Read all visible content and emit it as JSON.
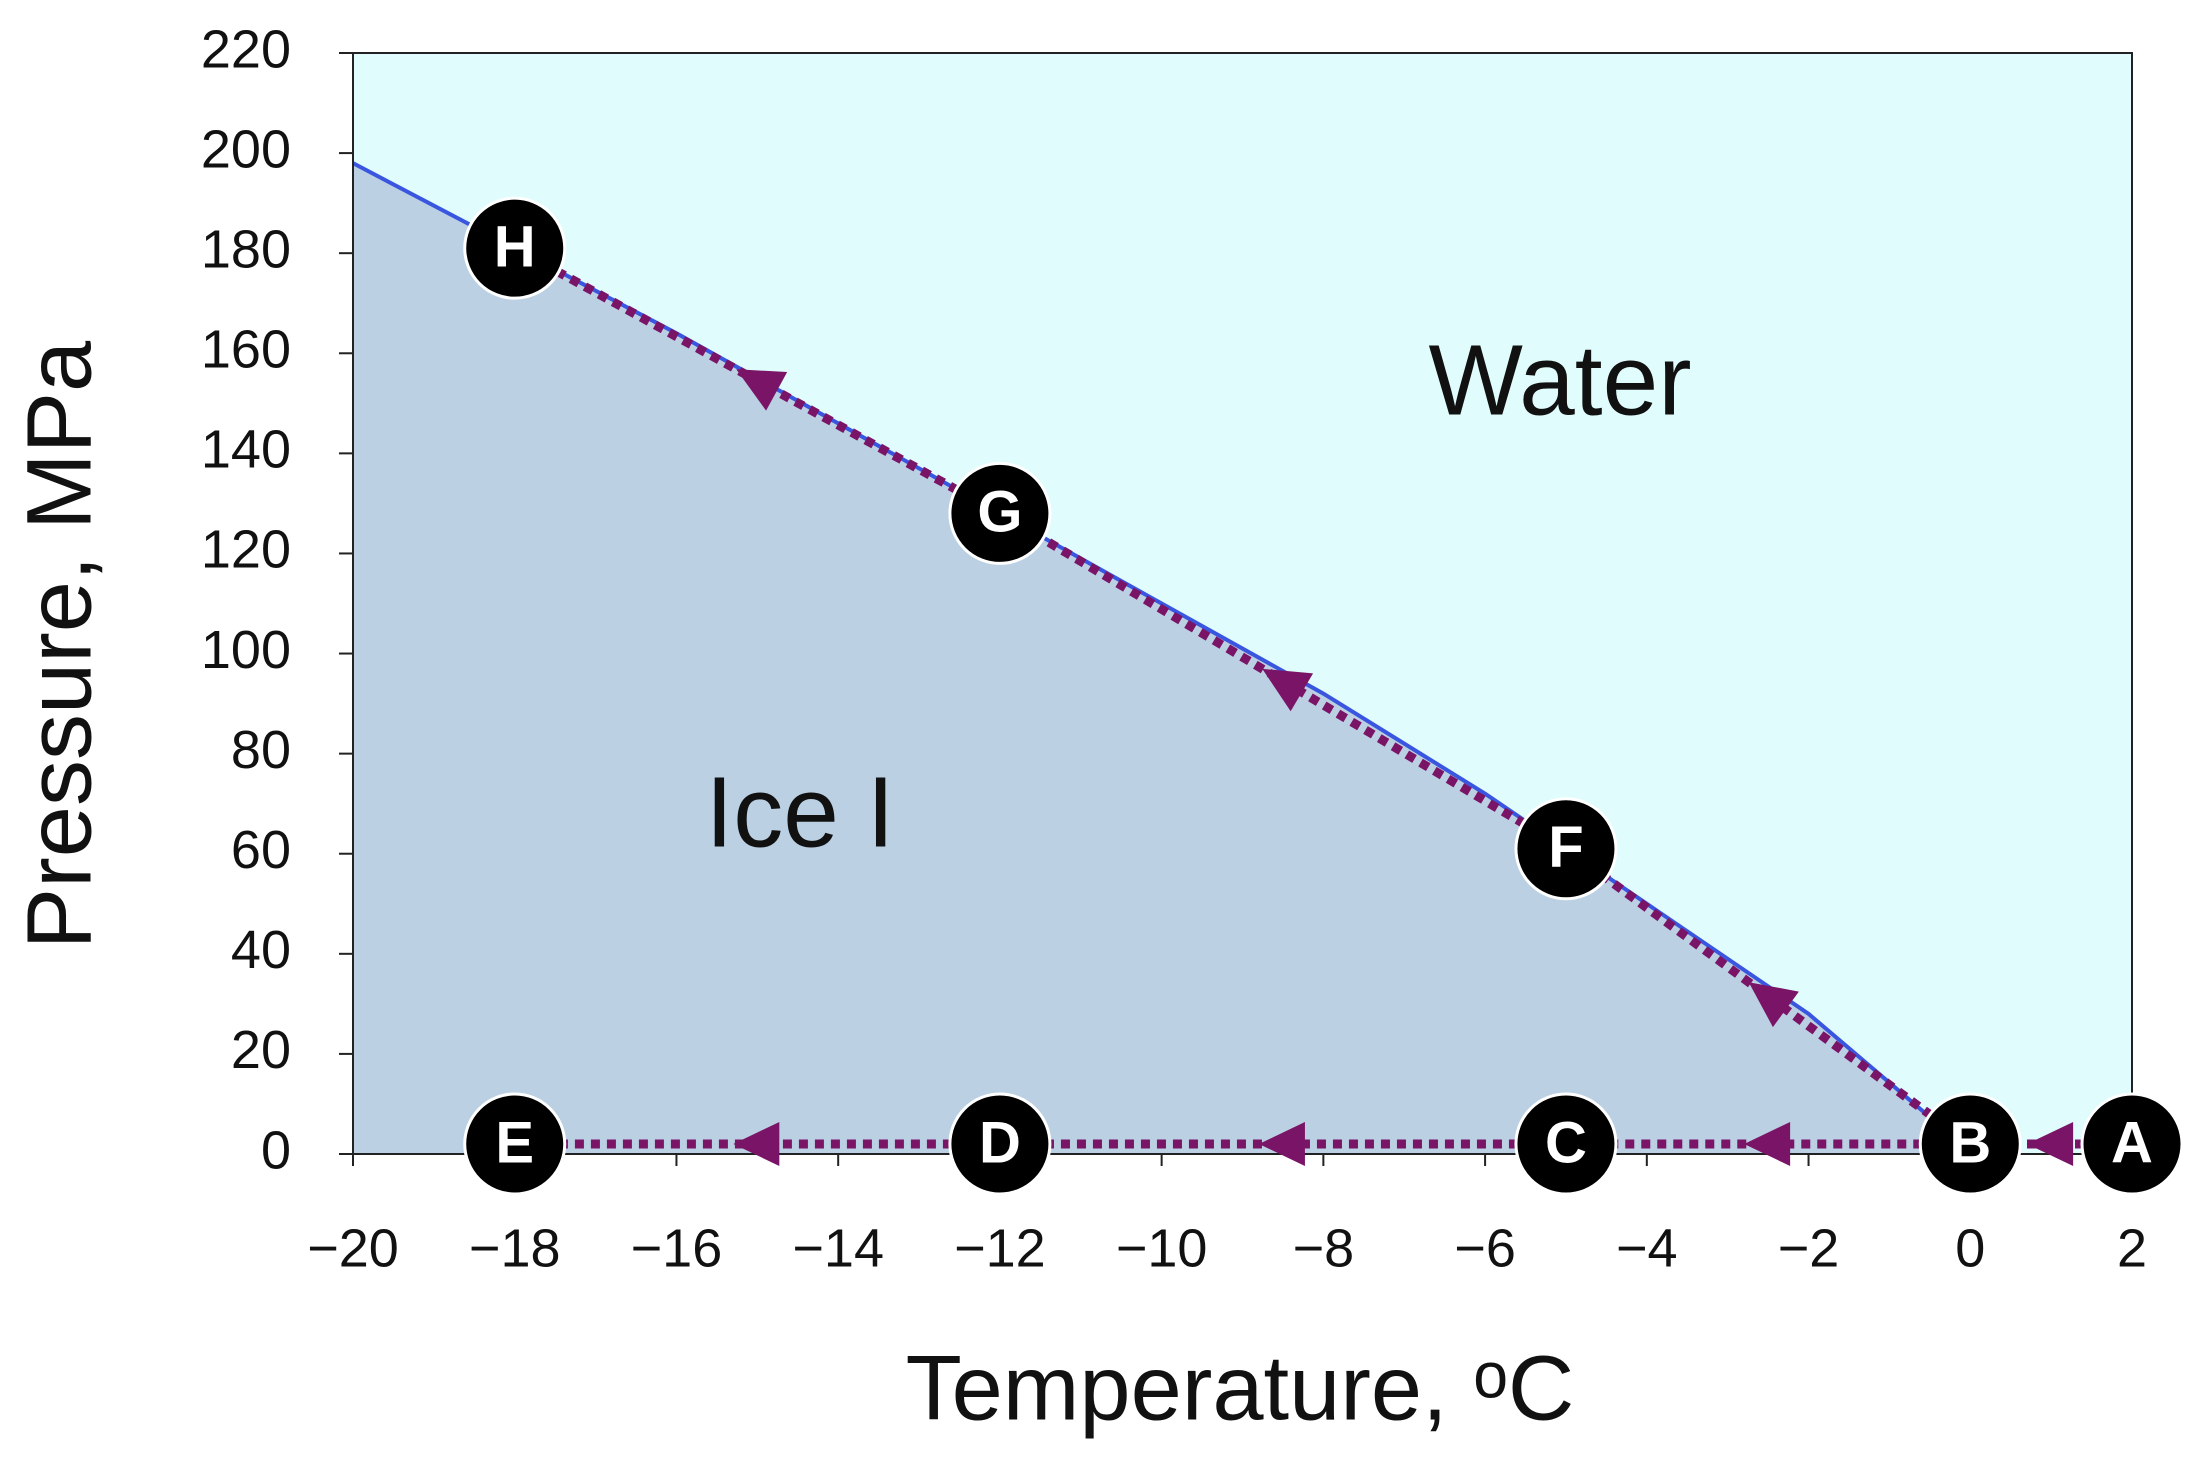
{
  "chart_data": {
    "type": "line",
    "x_label": "Temperature, ᵒC",
    "y_label": "Pressure, MPa",
    "annotations": [
      "Water",
      "Ice I"
    ],
    "xlim": [
      -20,
      2
    ],
    "ylim": [
      0,
      220
    ],
    "xticks": [
      {
        "value": -20,
        "label": "−20"
      },
      {
        "value": -18,
        "label": "−18"
      },
      {
        "value": -16,
        "label": "−16"
      },
      {
        "value": -14,
        "label": "−14"
      },
      {
        "value": -12,
        "label": "−12"
      },
      {
        "value": -10,
        "label": "−10"
      },
      {
        "value": -8,
        "label": "−8"
      },
      {
        "value": -6,
        "label": "−6"
      },
      {
        "value": -4,
        "label": "−4"
      },
      {
        "value": -2,
        "label": "−2"
      },
      0,
      2
    ],
    "yticks": [
      0,
      20,
      40,
      60,
      80,
      100,
      120,
      140,
      160,
      180,
      200,
      220
    ],
    "series": [
      {
        "color": "#3a55e0",
        "x": [
          -20,
          -18,
          -16,
          -14,
          -12,
          -10,
          -8,
          -6,
          -4,
          -2,
          -0.4
        ],
        "values": [
          198,
          181,
          164,
          146,
          128,
          110,
          92,
          72,
          50,
          28,
          6
        ]
      }
    ],
    "water_color": "#e0fcfc",
    "ice_color": "#bcd0e3",
    "points": [
      {
        "label": "A",
        "x": 2,
        "y": 2
      },
      {
        "label": "B",
        "x": 0,
        "y": 2
      },
      {
        "label": "C",
        "x": -5,
        "y": 2
      },
      {
        "label": "D",
        "x": -12,
        "y": 2
      },
      {
        "label": "E",
        "x": -18,
        "y": 2
      },
      {
        "label": "F",
        "x": -5,
        "y": 61
      },
      {
        "label": "G",
        "x": -12,
        "y": 128
      },
      {
        "label": "H",
        "x": -18,
        "y": 181
      }
    ],
    "paths": [
      [
        0,
        1,
        2,
        3,
        4
      ],
      [
        1,
        5,
        6,
        7
      ]
    ],
    "path_color": "#7a1466"
  }
}
